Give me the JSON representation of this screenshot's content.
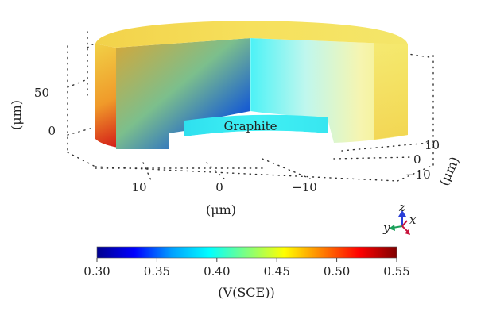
{
  "model": {
    "label": "Graphite"
  },
  "axes": {
    "z_label": "(μm)",
    "z_ticks": [
      "50",
      "0"
    ],
    "x_label": "(μm)",
    "x_ticks": [
      "10",
      "0",
      "−10"
    ],
    "y_label": "(μm)",
    "y_ticks": [
      "10",
      "0",
      "−10"
    ]
  },
  "triad": {
    "z": "z",
    "x": "x",
    "y": "y",
    "colors": {
      "z": "#2a3fd8",
      "x": "#c8143c",
      "y": "#1aa05a"
    }
  },
  "colorbar": {
    "min": 0.3,
    "max": 0.55,
    "ticks": [
      "0.30",
      "0.35",
      "0.40",
      "0.45",
      "0.50",
      "0.55"
    ],
    "label": "(V(SCE))",
    "colormap": [
      "#00008f",
      "#0000ff",
      "#00a0ff",
      "#00ffff",
      "#7fff7f",
      "#ffff00",
      "#ff8000",
      "#ff0000",
      "#7f0000"
    ]
  }
}
